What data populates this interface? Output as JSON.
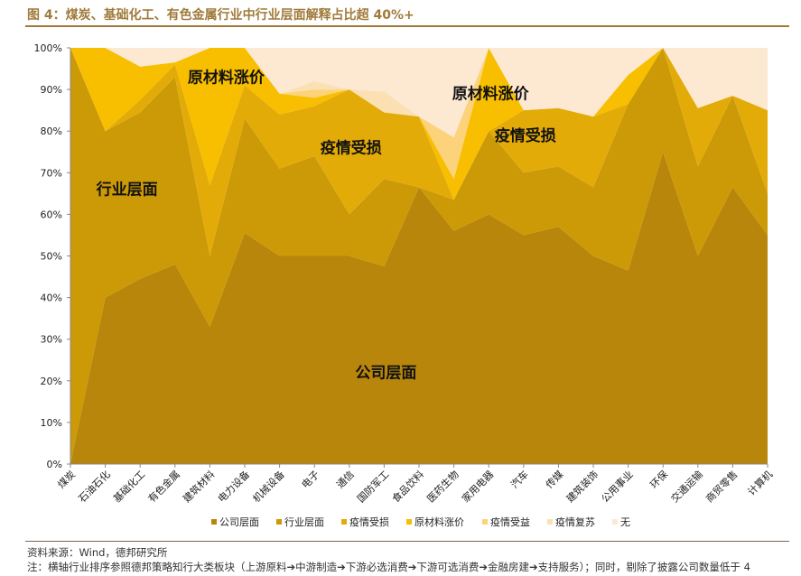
{
  "header": {
    "title": "图 4：煤炭、基础化工、有色金属行业中行业层面解释占比超 40%+"
  },
  "footer": {
    "source": "资料来源：Wind，德邦研究所",
    "note": "注：横轴行业排序参照德邦策略知行大类板块（上游原料➔中游制造➔下游必选消费➔下游可选消费➔金融房建➔支持服务）；同时，剔除了披露公司数量低于 4"
  },
  "chart_data": {
    "type": "area",
    "stacked": true,
    "ylim": [
      0,
      100
    ],
    "yticks": [
      "0%",
      "10%",
      "20%",
      "30%",
      "40%",
      "50%",
      "60%",
      "70%",
      "80%",
      "90%",
      "100%"
    ],
    "categories": [
      "煤炭",
      "石油石化",
      "基础化工",
      "有色金属",
      "建筑材料",
      "电力设备",
      "机械设备",
      "电子",
      "通信",
      "国防军工",
      "食品饮料",
      "医药生物",
      "家用电器",
      "汽车",
      "传媒",
      "建筑装饰",
      "公用事业",
      "环保",
      "交通运输",
      "商贸零售",
      "计算机"
    ],
    "series": [
      {
        "name": "公司层面",
        "color": "#b8860b",
        "values": [
          0,
          40,
          44.5,
          48,
          33,
          55.5,
          50,
          50,
          50,
          47.5,
          66.5,
          56,
          60,
          55,
          57,
          50,
          46.5,
          75,
          50,
          66.5,
          55
        ]
      },
      {
        "name": "行业层面",
        "color": "#cc9a06",
        "values": [
          100,
          40,
          40,
          45,
          17,
          27.5,
          21,
          24,
          10,
          21,
          0,
          7.5,
          20,
          15,
          14.5,
          16.5,
          40,
          25,
          21.5,
          22,
          10
        ]
      },
      {
        "name": "疫情受损",
        "color": "#e3ab08",
        "values": [
          0,
          0,
          3,
          3,
          17,
          8,
          13,
          12,
          30,
          16,
          17,
          0,
          0,
          15,
          14,
          17,
          0,
          0,
          14,
          0,
          20
        ]
      },
      {
        "name": "原材料涨价",
        "color": "#f8be00",
        "values": [
          0,
          20,
          8,
          0.5,
          33,
          9,
          5,
          2,
          0,
          0,
          0,
          5,
          20,
          0,
          0,
          0,
          7,
          0,
          0,
          0,
          0
        ]
      },
      {
        "name": "疫情受益",
        "color": "#fcd27a",
        "values": [
          0,
          0,
          0,
          0,
          0,
          0,
          0,
          2,
          0,
          0,
          0,
          10,
          0,
          0,
          0,
          0,
          0,
          0,
          0,
          0,
          0
        ]
      },
      {
        "name": "疫情复苏",
        "color": "#fbe0b4",
        "values": [
          0,
          0,
          0,
          0,
          0,
          0,
          0,
          2,
          0,
          5,
          0,
          0,
          0,
          0,
          0,
          0,
          0,
          0,
          0,
          0,
          0
        ]
      },
      {
        "name": "无",
        "color": "#fde8d2",
        "values": [
          0,
          0,
          4.5,
          3.5,
          0,
          0,
          11,
          8,
          10,
          10.5,
          16.5,
          21.5,
          0,
          15,
          14.5,
          16.5,
          6.5,
          0,
          14.5,
          11.5,
          15
        ]
      }
    ],
    "annotations": [
      {
        "text": "原材料涨价",
        "x": "建筑材料",
        "y": 93
      },
      {
        "text": "行业层面",
        "x": "石油石化",
        "y": 66
      },
      {
        "text": "疫情受损",
        "x": "通信",
        "y": 76
      },
      {
        "text": "原材料涨价",
        "x": "家用电器",
        "y": 89
      },
      {
        "text": "疫情受损",
        "x": "汽车",
        "y": 79
      },
      {
        "text": "公司层面",
        "x": "国防军工",
        "y": 22
      }
    ],
    "legend": {
      "position": "bottom"
    }
  }
}
